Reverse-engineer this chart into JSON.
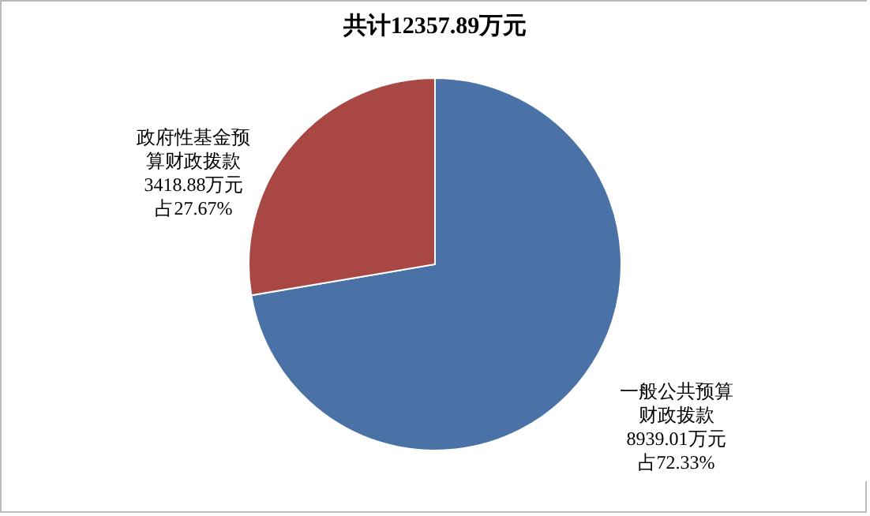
{
  "chart_data": {
    "type": "pie",
    "title": "共计12357.89万元",
    "categories": [
      "一般公共预算财政拨款",
      "政府性基金预算财政拨款"
    ],
    "values": [
      8939.01,
      3418.88
    ],
    "colors": [
      "#4a72a6",
      "#a84744"
    ],
    "value_labels": [
      "8939.01万元占72.33%",
      "3418.88万元占27.67%"
    ],
    "legend": false
  }
}
